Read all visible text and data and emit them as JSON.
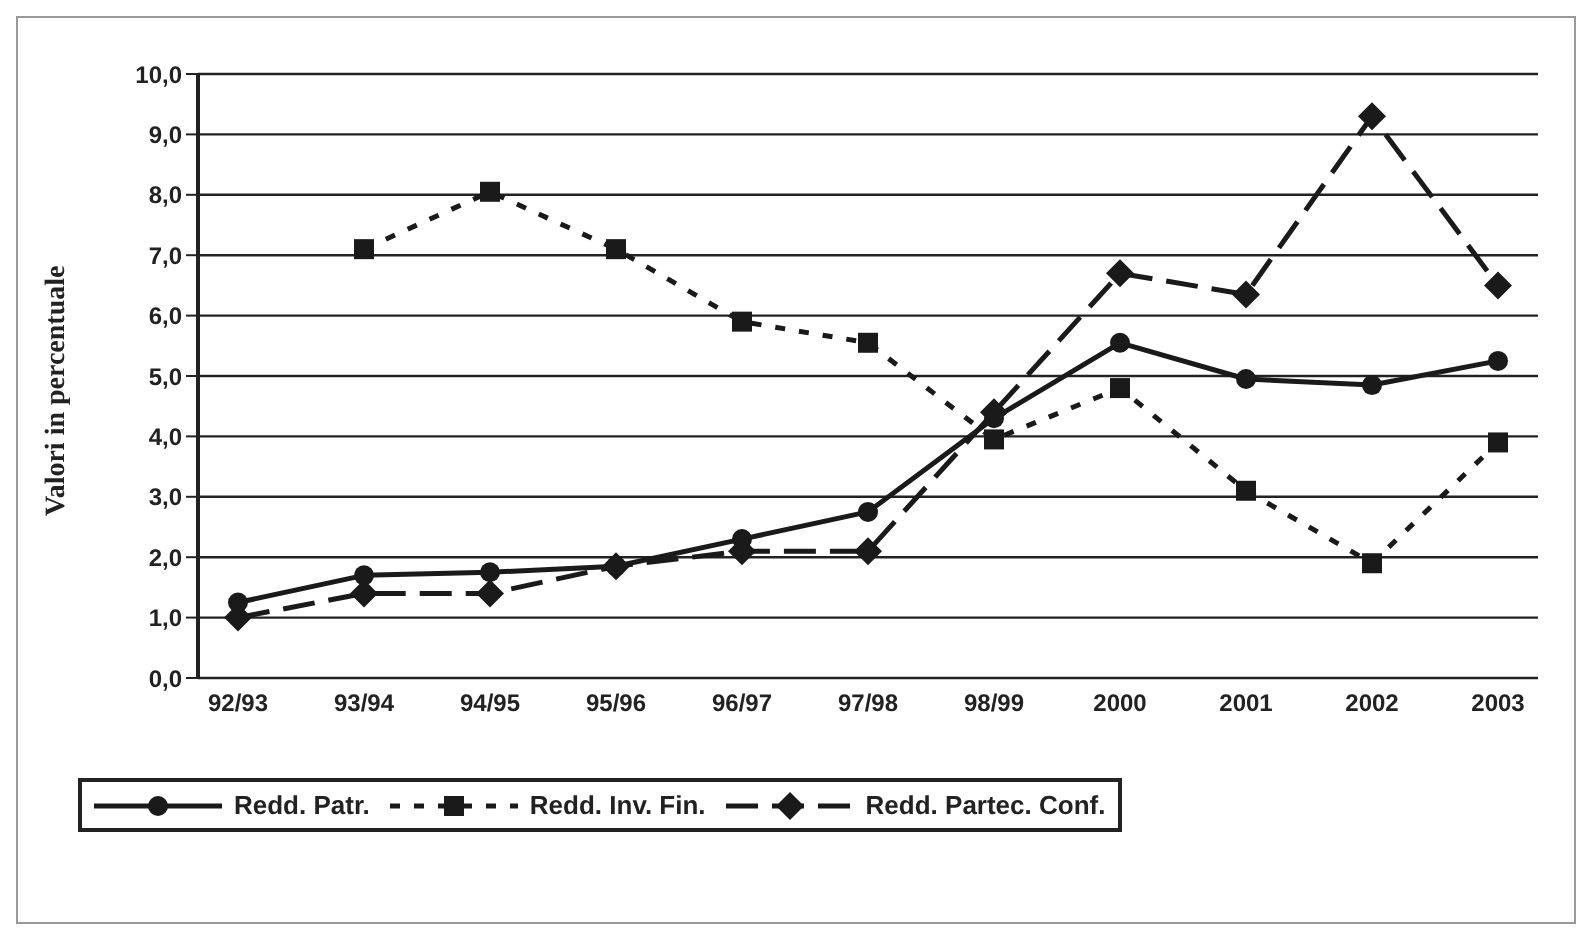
{
  "chart_data": {
    "type": "line",
    "ylabel": "Valori in percentuale",
    "categories": [
      "92/93",
      "93/94",
      "94/95",
      "95/96",
      "96/97",
      "97/98",
      "98/99",
      "2000",
      "2001",
      "2002",
      "2003"
    ],
    "series": [
      {
        "name": "Redd. Patr.",
        "color": "#1a1a1a",
        "marker": "circle",
        "line_style": "solid",
        "values": [
          1.25,
          1.7,
          1.75,
          1.85,
          2.3,
          2.75,
          4.3,
          5.55,
          4.95,
          4.85,
          5.25
        ]
      },
      {
        "name": "Redd. Inv. Fin.",
        "color": "#1a1a1a",
        "marker": "square",
        "line_style": "dotted",
        "values": [
          null,
          7.1,
          8.05,
          7.1,
          5.9,
          5.55,
          3.95,
          4.8,
          3.1,
          1.9,
          3.9
        ]
      },
      {
        "name": "Redd. Partec. Conf.",
        "color": "#1a1a1a",
        "marker": "diamond",
        "line_style": "dashed",
        "values": [
          1.0,
          1.4,
          1.4,
          1.85,
          2.1,
          2.1,
          4.4,
          6.7,
          6.35,
          9.3,
          6.5
        ]
      }
    ],
    "ylim": [
      0,
      10
    ],
    "yticks": [
      {
        "value": 0,
        "label": "0,0"
      },
      {
        "value": 1,
        "label": "1,0"
      },
      {
        "value": 2,
        "label": "2,0"
      },
      {
        "value": 3,
        "label": "3,0"
      },
      {
        "value": 4,
        "label": "4,0"
      },
      {
        "value": 5,
        "label": "5,0"
      },
      {
        "value": 6,
        "label": "6,0"
      },
      {
        "value": 7,
        "label": "7,0"
      },
      {
        "value": 8,
        "label": "8,0"
      },
      {
        "value": 9,
        "label": "9,0"
      },
      {
        "value": 10,
        "label": "10,0"
      }
    ],
    "grid": "y",
    "legend": "bottom"
  }
}
